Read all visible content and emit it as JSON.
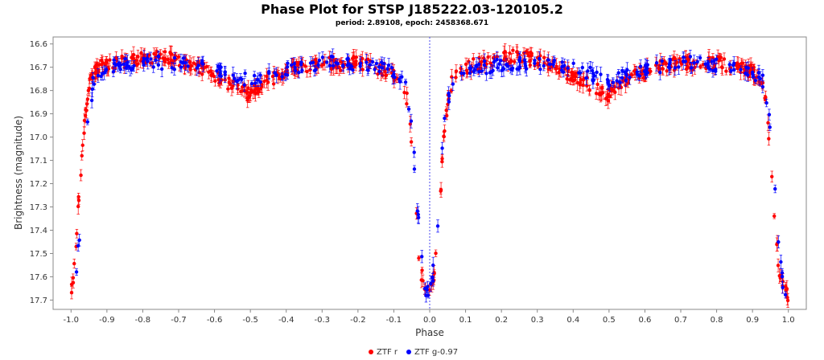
{
  "chart_data": {
    "type": "scatter",
    "title": "Phase Plot for STSP J185222.03-120105.2",
    "subtitle": "period: 2.89108, epoch: 2458368.671",
    "xlabel": "Phase",
    "ylabel": "Brightness (magnitude)",
    "xlim": [
      -1.05,
      1.05
    ],
    "ylim": [
      16.57,
      17.74
    ],
    "y_inverted": true,
    "x_ticks": [
      "-1.0",
      "-0.9",
      "-0.8",
      "-0.7",
      "-0.6",
      "-0.5",
      "-0.4",
      "-0.3",
      "-0.2",
      "-0.1",
      "0.0",
      "0.1",
      "0.2",
      "0.3",
      "0.4",
      "0.5",
      "0.6",
      "0.7",
      "0.8",
      "0.9",
      "1.0"
    ],
    "y_ticks": [
      "16.6",
      "16.7",
      "16.8",
      "16.9",
      "17.0",
      "17.1",
      "17.2",
      "17.3",
      "17.4",
      "17.5",
      "17.6",
      "17.7"
    ],
    "grid": false,
    "reference_line_x": 0.0,
    "legend_position": "bottom-center",
    "series": [
      {
        "name": "ZTF r",
        "color": "#ff0000",
        "marker": "circle",
        "error_bars": true,
        "light_curve": [
          [
            -1.0,
            17.65
          ],
          [
            -0.99,
            17.55
          ],
          [
            -0.98,
            17.3
          ],
          [
            -0.97,
            17.1
          ],
          [
            -0.96,
            16.92
          ],
          [
            -0.95,
            16.8
          ],
          [
            -0.94,
            16.74
          ],
          [
            -0.92,
            16.7
          ],
          [
            -0.88,
            16.68
          ],
          [
            -0.82,
            16.67
          ],
          [
            -0.76,
            16.65
          ],
          [
            -0.7,
            16.67
          ],
          [
            -0.64,
            16.7
          ],
          [
            -0.6,
            16.74
          ],
          [
            -0.57,
            16.76
          ],
          [
            -0.54,
            16.79
          ],
          [
            -0.5,
            16.82
          ],
          [
            -0.46,
            16.77
          ],
          [
            -0.42,
            16.73
          ],
          [
            -0.36,
            16.7
          ],
          [
            -0.3,
            16.68
          ],
          [
            -0.25,
            16.69
          ],
          [
            -0.2,
            16.68
          ],
          [
            -0.15,
            16.7
          ],
          [
            -0.1,
            16.73
          ],
          [
            -0.07,
            16.78
          ],
          [
            -0.06,
            16.88
          ],
          [
            -0.05,
            17.05
          ],
          [
            -0.04,
            17.3
          ],
          [
            -0.03,
            17.5
          ],
          [
            -0.02,
            17.62
          ],
          [
            -0.01,
            17.66
          ],
          [
            0.0,
            17.68
          ],
          [
            0.01,
            17.62
          ],
          [
            0.02,
            17.48
          ],
          [
            0.03,
            17.25
          ],
          [
            0.04,
            17.0
          ],
          [
            0.05,
            16.85
          ],
          [
            0.06,
            16.77
          ],
          [
            0.08,
            16.72
          ],
          [
            0.12,
            16.69
          ],
          [
            0.18,
            16.67
          ],
          [
            0.24,
            16.65
          ],
          [
            0.3,
            16.67
          ],
          [
            0.36,
            16.7
          ],
          [
            0.4,
            16.74
          ],
          [
            0.43,
            16.76
          ],
          [
            0.46,
            16.79
          ],
          [
            0.5,
            16.82
          ],
          [
            0.54,
            16.77
          ],
          [
            0.58,
            16.73
          ],
          [
            0.64,
            16.7
          ],
          [
            0.7,
            16.68
          ],
          [
            0.75,
            16.69
          ],
          [
            0.8,
            16.68
          ],
          [
            0.85,
            16.7
          ],
          [
            0.9,
            16.72
          ],
          [
            0.93,
            16.78
          ],
          [
            0.94,
            16.88
          ],
          [
            0.95,
            17.05
          ],
          [
            0.96,
            17.3
          ],
          [
            0.97,
            17.5
          ],
          [
            0.98,
            17.62
          ],
          [
            0.99,
            17.66
          ],
          [
            1.0,
            17.68
          ]
        ]
      },
      {
        "name": "ZTF g-0.97",
        "color": "#0000ff",
        "marker": "circle",
        "error_bars": true,
        "light_curve": [
          [
            -0.985,
            17.6
          ],
          [
            -0.975,
            17.4
          ],
          [
            -0.965,
            17.15
          ],
          [
            -0.955,
            16.95
          ],
          [
            -0.945,
            16.82
          ],
          [
            -0.93,
            16.73
          ],
          [
            -0.9,
            16.7
          ],
          [
            -0.84,
            16.69
          ],
          [
            -0.78,
            16.68
          ],
          [
            -0.72,
            16.68
          ],
          [
            -0.66,
            16.69
          ],
          [
            -0.6,
            16.71
          ],
          [
            -0.55,
            16.73
          ],
          [
            -0.5,
            16.76
          ],
          [
            -0.45,
            16.73
          ],
          [
            -0.4,
            16.71
          ],
          [
            -0.34,
            16.69
          ],
          [
            -0.28,
            16.68
          ],
          [
            -0.22,
            16.69
          ],
          [
            -0.16,
            16.69
          ],
          [
            -0.11,
            16.71
          ],
          [
            -0.075,
            16.75
          ],
          [
            -0.06,
            16.85
          ],
          [
            -0.045,
            17.05
          ],
          [
            -0.035,
            17.3
          ],
          [
            -0.025,
            17.5
          ],
          [
            -0.015,
            17.62
          ],
          [
            -0.005,
            17.67
          ],
          [
            0.005,
            17.64
          ],
          [
            0.015,
            17.5
          ],
          [
            0.025,
            17.3
          ],
          [
            0.035,
            17.05
          ],
          [
            0.045,
            16.88
          ],
          [
            0.06,
            16.78
          ],
          [
            0.09,
            16.72
          ],
          [
            0.15,
            16.7
          ],
          [
            0.22,
            16.69
          ],
          [
            0.28,
            16.68
          ],
          [
            0.34,
            16.69
          ],
          [
            0.4,
            16.71
          ],
          [
            0.45,
            16.73
          ],
          [
            0.5,
            16.76
          ],
          [
            0.55,
            16.73
          ],
          [
            0.6,
            16.71
          ],
          [
            0.66,
            16.69
          ],
          [
            0.72,
            16.68
          ],
          [
            0.78,
            16.69
          ],
          [
            0.84,
            16.69
          ],
          [
            0.89,
            16.71
          ],
          [
            0.925,
            16.75
          ],
          [
            0.94,
            16.85
          ],
          [
            0.955,
            17.05
          ],
          [
            0.965,
            17.3
          ],
          [
            0.975,
            17.5
          ],
          [
            0.985,
            17.62
          ],
          [
            0.995,
            17.67
          ]
        ]
      }
    ]
  }
}
